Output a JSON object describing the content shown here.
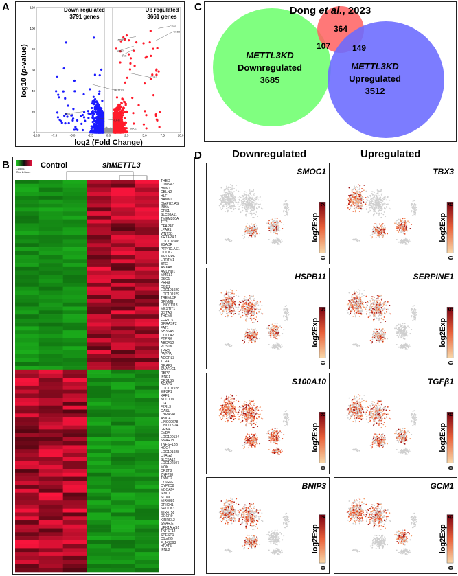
{
  "panels": {
    "a": "A",
    "b": "B",
    "c": "C",
    "d": "D"
  },
  "volcano": {
    "down_label": "Down regulated",
    "down_count": "3791 genes",
    "up_label": "Up regulated",
    "up_count": "3661 genes",
    "xlabel": "log2 (Fold Change)",
    "ylabel_pre": "log10 (",
    "ylabel_ital": "p",
    "ylabel_post": "-value)",
    "xticks": [
      "-10.0",
      "-7.5",
      "-5.0",
      "-2.5",
      "0.0",
      "2.5",
      "5.0",
      "7.5",
      "10.0"
    ],
    "yticks": [
      "0",
      "20",
      "40",
      "60",
      "80",
      "100",
      "120"
    ],
    "annotations": [
      "CGB1",
      "CGB8",
      "CGB5",
      "CGB7",
      "CGB",
      "CGB2",
      "METTL3",
      "HLA-G",
      "HLA-B",
      "SDC1"
    ],
    "colors": {
      "down": "#1a1aff",
      "up": "#ff1a2a",
      "ns": "#999999"
    }
  },
  "chart_data": {
    "type": "scatter",
    "xlabel": "log2 (Fold Change)",
    "ylabel": "log10 (p-value)",
    "xlim": [
      -10,
      10
    ],
    "ylim": [
      0,
      120
    ],
    "series": [
      {
        "name": "Down regulated",
        "count": 3791
      },
      {
        "name": "Up regulated",
        "count": 3661
      }
    ]
  },
  "heatmap": {
    "key_ticks": "-1.5  0  1",
    "key_label": "Row Z-Score",
    "control_label": "Control",
    "sh_label": "shMETTL3",
    "genes": [
      "THBD",
      "CTNNA3",
      "HNMT",
      "CBLN2",
      "HLF",
      "BANK1",
      "DIAPH2.AS",
      "INHA",
      "CPS1",
      "SLC38A11",
      "TMEM200A",
      "TFPI",
      "CFAP47",
      "LPAR1",
      "WNT5B",
      "KRTAP4.1",
      "LOC102606",
      "ESADR",
      "PTPRD.AS1",
      "DOCK2",
      "MPDPRE",
      "LRRTM1",
      "BTC",
      "ANXA8",
      "AMDHD1",
      "MMEL1",
      "DSC1",
      "PRR9",
      "CGB1",
      "LOC101929",
      "LOC101929",
      "TREML3P",
      "GPNMB",
      "LINC01118",
      "MESTIT1",
      "GSTA3",
      "THEM5",
      "FER1L5",
      "GPRASP2",
      "FAT1",
      "SH3SAS",
      "COL1A2",
      "PTPRK",
      "ABCA12",
      "POSTN",
      "TPR3",
      "PAPPA",
      "ADGRL3",
      "TLR4",
      "GRAP2",
      "SNAR.G1",
      "RBP7",
      "IFNB1",
      "OR51B5",
      "ADAP1",
      "LOC101928",
      "EIF3P1",
      "XAF1",
      "NUDT19",
      "LTA",
      "F2RL3",
      "OASL",
      "CYP46A1",
      "ASIC4",
      "LINC00678",
      "LINC00924",
      "GRM4",
      "EVDA",
      "LOC100134",
      "SNAR.H",
      "TNFSF13B",
      "HCG4",
      "LOC101928",
      "CTAG2",
      "SLC6A12",
      "LOC102507",
      "MOK",
      "OR2T8",
      "ZNF738",
      "TNNC2",
      "LY6G6F",
      "CYP2C8",
      "MBOAT4",
      "IFNL1",
      "SOX9",
      "MIR6881",
      "DRICH1",
      "SPOCK3",
      "MIR4758",
      "DGCR9",
      "KIRREL2",
      "SNAR.E",
      "UPK1A.AS1",
      "TNFSF14",
      "SPESP1",
      "C1orf95",
      "FLJ42393",
      "HRAT5",
      "IFNL2"
    ],
    "split_after": 48
  },
  "venn": {
    "title_pre": "Dong ",
    "title_ital": "et al.",
    "title_post": ", 2023",
    "left_gene": "METTL3KD",
    "left_label": "Downregulated",
    "left_count": "3685",
    "right_gene": "METTL3KD",
    "right_label": "Upregulated",
    "right_count": "3512",
    "top_count": "364",
    "left_overlap": "107",
    "right_overlap": "149",
    "colors": {
      "left": "#80ff80",
      "right": "#7f7fff",
      "top": "#ff7070"
    }
  },
  "tsne": {
    "col_down": "Downregulated",
    "col_up": "Upregulated",
    "legend_label": "log2Exp",
    "legend_min": "0",
    "panels": [
      {
        "gene": "SMOC1",
        "max": "2"
      },
      {
        "gene": "TBX3",
        "max": "6"
      },
      {
        "gene": "HSPB11",
        "max": "5"
      },
      {
        "gene": "SERPINE1",
        "max": "5"
      },
      {
        "gene": "S100A10",
        "max": "8"
      },
      {
        "gene": "TGFβ1",
        "max": "6"
      },
      {
        "gene": "BNIP3",
        "max": "7"
      },
      {
        "gene": "GCM1",
        "max": "6"
      }
    ]
  }
}
